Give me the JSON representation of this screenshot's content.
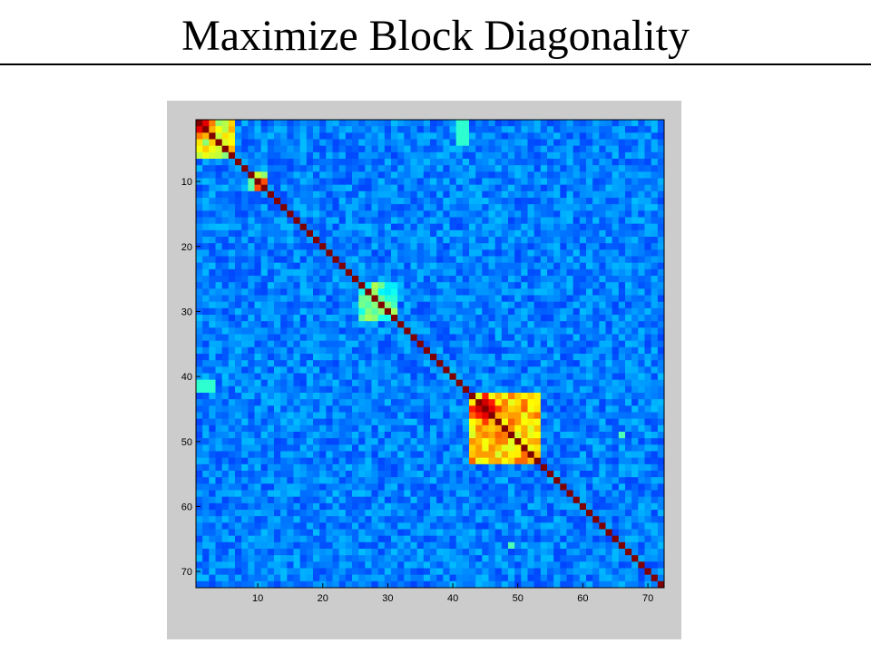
{
  "slide": {
    "title": "Maximize Block Diagonality"
  },
  "chart_data": {
    "type": "heatmap",
    "title": "",
    "xlabel": "",
    "ylabel": "",
    "n": 72,
    "xlim": [
      0.5,
      72.5
    ],
    "ylim": [
      72.5,
      0.5
    ],
    "xticks": [
      10,
      20,
      30,
      40,
      50,
      60,
      70
    ],
    "yticks": [
      10,
      20,
      30,
      40,
      50,
      60,
      70
    ],
    "colormap": "jet",
    "clim": [
      0,
      1
    ],
    "background_level": 0.25,
    "diagonal_value": 1.0,
    "blocks": [
      {
        "range": [
          1,
          6
        ],
        "level": 0.6
      },
      {
        "range": [
          9,
          11
        ],
        "level": 0.55
      },
      {
        "range": [
          26,
          31
        ],
        "level": 0.45
      },
      {
        "range": [
          43,
          53
        ],
        "level": 0.68
      }
    ],
    "off_block_patches": [
      {
        "rows": [
          1,
          4
        ],
        "cols": [
          41,
          42
        ],
        "level": 0.42
      },
      {
        "rows": [
          41,
          42
        ],
        "cols": [
          1,
          3
        ],
        "level": 0.42
      },
      {
        "rows": [
          49,
          49
        ],
        "cols": [
          66,
          66
        ],
        "level": 0.45
      },
      {
        "rows": [
          66,
          66
        ],
        "cols": [
          49,
          49
        ],
        "level": 0.45
      }
    ],
    "hot_cells": [
      {
        "r": 1,
        "c": 2,
        "v": 0.9
      },
      {
        "r": 2,
        "c": 1,
        "v": 0.9
      },
      {
        "r": 1,
        "c": 3,
        "v": 0.75
      },
      {
        "r": 3,
        "c": 1,
        "v": 0.75
      },
      {
        "r": 2,
        "c": 3,
        "v": 0.7
      },
      {
        "r": 3,
        "c": 2,
        "v": 0.7
      },
      {
        "r": 10,
        "c": 11,
        "v": 0.8
      },
      {
        "r": 11,
        "c": 10,
        "v": 0.8
      },
      {
        "r": 44,
        "c": 45,
        "v": 0.92
      },
      {
        "r": 45,
        "c": 44,
        "v": 0.92
      },
      {
        "r": 45,
        "c": 46,
        "v": 0.9
      },
      {
        "r": 46,
        "c": 45,
        "v": 0.9
      },
      {
        "r": 44,
        "c": 46,
        "v": 0.85
      },
      {
        "r": 46,
        "c": 44,
        "v": 0.85
      },
      {
        "r": 45,
        "c": 47,
        "v": 0.82
      },
      {
        "r": 47,
        "c": 45,
        "v": 0.82
      },
      {
        "r": 43,
        "c": 45,
        "v": 0.85
      },
      {
        "r": 45,
        "c": 43,
        "v": 0.85
      },
      {
        "r": 47,
        "c": 49,
        "v": 0.78
      },
      {
        "r": 49,
        "c": 47,
        "v": 0.78
      },
      {
        "r": 44,
        "c": 48,
        "v": 0.75
      },
      {
        "r": 48,
        "c": 44,
        "v": 0.75
      },
      {
        "r": 46,
        "c": 52,
        "v": 0.72
      },
      {
        "r": 52,
        "c": 46,
        "v": 0.72
      }
    ]
  }
}
